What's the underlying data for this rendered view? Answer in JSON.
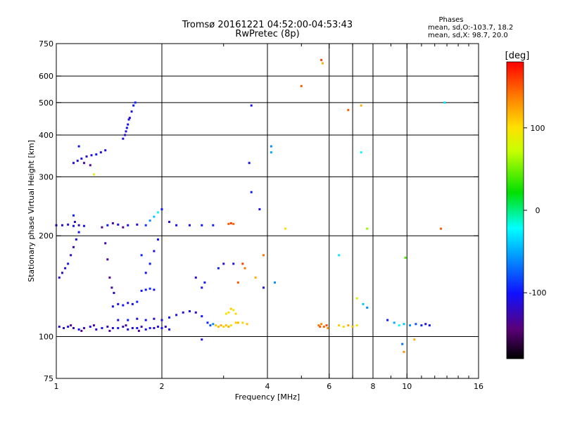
{
  "chart_data": {
    "type": "scatter",
    "title": "Tromsø 20161221 04:52:00-04:53:43",
    "subtitle": "RwPretec (8p)",
    "xlabel": "Frequency [MHz]",
    "ylabel": "Stationary phase Virtual Height [km]",
    "x_scale": "log",
    "y_scale": "log",
    "xlim": [
      1,
      16
    ],
    "ylim": [
      75,
      750
    ],
    "x_ticks": [
      1,
      2,
      4,
      6,
      8,
      10,
      16
    ],
    "x_minor_ticks": [
      3,
      5,
      7,
      9,
      11,
      12,
      13,
      14,
      15
    ],
    "y_ticks": [
      75,
      100,
      200,
      300,
      400,
      500,
      600,
      750
    ],
    "grid_x": [
      2,
      4,
      6,
      7,
      8,
      10
    ],
    "grid_y": [
      100,
      200,
      300,
      400,
      500,
      600
    ],
    "grid": true,
    "phases_box": {
      "title": "Phases",
      "line1": "mean, sd,O:-103.7, 18.2",
      "line2": "mean, sd,X:  98.7, 20.0"
    },
    "colorbar": {
      "label": "[deg]",
      "range": [
        -180,
        180
      ],
      "ticks": [
        {
          "value": 100,
          "label": "100"
        },
        {
          "value": 0,
          "label": "0"
        },
        {
          "value": -100,
          "label": "-100"
        }
      ]
    },
    "series": [
      {
        "points": [
          [
            1.02,
            107,
            -110
          ],
          [
            1.05,
            106,
            -115
          ],
          [
            1.08,
            107,
            -105
          ],
          [
            1.12,
            106,
            -120
          ],
          [
            1.16,
            105,
            -100
          ],
          [
            1.2,
            106,
            -125
          ],
          [
            1.25,
            107,
            -110
          ],
          [
            1.3,
            105,
            -118
          ],
          [
            1.35,
            106,
            -105
          ],
          [
            1.4,
            107,
            -122
          ],
          [
            1.45,
            106,
            -112
          ],
          [
            1.5,
            106,
            -100
          ],
          [
            1.55,
            107,
            -120
          ],
          [
            1.6,
            105,
            -108
          ],
          [
            1.65,
            106,
            -115
          ],
          [
            1.7,
            106,
            -102
          ],
          [
            1.75,
            107,
            -125
          ],
          [
            1.8,
            105,
            -110
          ],
          [
            1.85,
            106,
            -100
          ],
          [
            1.9,
            106,
            -118
          ],
          [
            1.95,
            107,
            -112
          ],
          [
            2.0,
            106,
            -104
          ],
          [
            2.05,
            107,
            -120
          ],
          [
            2.1,
            105,
            -108
          ],
          [
            1.1,
            108,
            -135
          ],
          [
            1.18,
            104,
            -140
          ],
          [
            1.28,
            108,
            -130
          ],
          [
            1.42,
            104,
            -138
          ],
          [
            1.58,
            108,
            -132
          ],
          [
            1.72,
            104,
            -140
          ]
        ]
      },
      {
        "points": [
          [
            1.5,
            112,
            -110
          ],
          [
            1.6,
            112,
            -100
          ],
          [
            1.7,
            113,
            -115
          ],
          [
            1.8,
            112,
            -105
          ],
          [
            1.9,
            113,
            -120
          ],
          [
            2.0,
            112,
            -110
          ],
          [
            2.1,
            114,
            -100
          ],
          [
            2.2,
            116,
            -108
          ],
          [
            2.3,
            118,
            -112
          ],
          [
            2.4,
            119,
            -104
          ],
          [
            2.5,
            118,
            -115
          ],
          [
            2.6,
            115,
            -100
          ],
          [
            2.7,
            110,
            -95
          ],
          [
            2.75,
            108,
            -80
          ],
          [
            2.8,
            109,
            -60
          ]
        ]
      },
      {
        "points": [
          [
            1.45,
            123,
            -105
          ],
          [
            1.5,
            125,
            -110
          ],
          [
            1.55,
            124,
            -100
          ],
          [
            1.6,
            126,
            -112
          ],
          [
            1.65,
            125,
            -104
          ],
          [
            1.7,
            127,
            -95
          ],
          [
            1.8,
            138,
            -100
          ],
          [
            1.85,
            139,
            -90
          ],
          [
            1.9,
            138,
            -105
          ],
          [
            1.75,
            137,
            -98
          ]
        ]
      },
      {
        "points": [
          [
            2.85,
            108,
            110
          ],
          [
            2.9,
            107,
            115
          ],
          [
            2.95,
            108,
            120
          ],
          [
            3.0,
            107,
            105
          ],
          [
            3.05,
            108,
            112
          ],
          [
            3.1,
            107,
            118
          ],
          [
            3.15,
            108,
            100
          ],
          [
            3.25,
            110,
            108
          ],
          [
            3.3,
            110,
            115
          ],
          [
            3.4,
            110,
            105
          ],
          [
            3.5,
            109,
            112
          ],
          [
            3.05,
            117,
            95
          ],
          [
            3.1,
            118,
            100
          ],
          [
            3.15,
            121,
            110
          ],
          [
            3.2,
            120,
            90
          ],
          [
            3.25,
            117,
            105
          ]
        ]
      },
      {
        "points": [
          [
            5.6,
            108,
            140
          ],
          [
            5.65,
            107,
            150
          ],
          [
            5.7,
            109,
            135
          ],
          [
            5.8,
            107,
            145
          ],
          [
            5.9,
            108,
            155
          ],
          [
            5.95,
            106,
            130
          ],
          [
            6.4,
            108,
            110
          ],
          [
            6.6,
            107,
            105
          ],
          [
            6.8,
            108,
            120
          ],
          [
            7.0,
            107,
            115
          ],
          [
            7.2,
            108,
            100
          ],
          [
            9.5,
            108,
            -20
          ],
          [
            9.8,
            109,
            -40
          ],
          [
            10.2,
            108,
            -60
          ],
          [
            10.6,
            109,
            -80
          ],
          [
            11.0,
            108,
            -95
          ],
          [
            11.3,
            109,
            -110
          ],
          [
            11.6,
            108,
            -100
          ],
          [
            8.8,
            112,
            -100
          ],
          [
            9.2,
            110,
            -50
          ],
          [
            7.5,
            125,
            -40
          ],
          [
            7.7,
            122,
            -60
          ]
        ]
      },
      {
        "points": [
          [
            1.02,
            150,
            -115
          ],
          [
            1.04,
            155,
            -120
          ],
          [
            1.06,
            160,
            -110
          ],
          [
            1.08,
            165,
            -105
          ],
          [
            1.1,
            175,
            -115
          ],
          [
            1.12,
            185,
            -125
          ],
          [
            1.14,
            195,
            -110
          ],
          [
            1.16,
            205,
            -105
          ],
          [
            1.13,
            220,
            -115
          ],
          [
            1.12,
            230,
            -95
          ],
          [
            1.38,
            190,
            -130
          ],
          [
            1.4,
            170,
            -135
          ],
          [
            1.42,
            150,
            -140
          ],
          [
            1.44,
            140,
            -130
          ],
          [
            1.46,
            135,
            -120
          ],
          [
            1.8,
            155,
            -105
          ],
          [
            1.85,
            165,
            -100
          ],
          [
            1.9,
            180,
            -110
          ],
          [
            1.95,
            195,
            -100
          ],
          [
            1.75,
            175,
            -95
          ],
          [
            2.5,
            150,
            -120
          ],
          [
            2.6,
            140,
            -110
          ],
          [
            2.65,
            145,
            -100
          ],
          [
            2.9,
            160,
            -95
          ],
          [
            3.0,
            165,
            -115
          ],
          [
            3.2,
            165,
            -105
          ],
          [
            3.4,
            165,
            160
          ],
          [
            3.45,
            160,
            140
          ],
          [
            3.3,
            145,
            150
          ]
        ]
      },
      {
        "points": [
          [
            1.0,
            215,
            -105
          ],
          [
            1.04,
            215,
            -110
          ],
          [
            1.08,
            216,
            -115
          ],
          [
            1.12,
            214,
            -100
          ],
          [
            1.16,
            215,
            -120
          ],
          [
            1.2,
            214,
            -110
          ],
          [
            1.4,
            215,
            -100
          ],
          [
            1.5,
            216,
            -110
          ],
          [
            1.6,
            215,
            -105
          ],
          [
            1.7,
            216,
            -115
          ],
          [
            1.8,
            215,
            -90
          ],
          [
            1.85,
            222,
            -60
          ],
          [
            1.9,
            228,
            -40
          ],
          [
            1.95,
            235,
            -20
          ],
          [
            2.0,
            240,
            -100
          ],
          [
            2.1,
            220,
            -110
          ],
          [
            2.2,
            215,
            -105
          ],
          [
            2.4,
            215,
            -110
          ],
          [
            2.6,
            215,
            -100
          ],
          [
            2.8,
            215,
            -95
          ],
          [
            3.1,
            217,
            150
          ],
          [
            3.15,
            218,
            160
          ],
          [
            3.2,
            217,
            145
          ],
          [
            1.35,
            212,
            -135
          ],
          [
            1.45,
            218,
            -130
          ],
          [
            1.55,
            212,
            -140
          ]
        ]
      },
      {
        "points": [
          [
            1.12,
            330,
            -110
          ],
          [
            1.15,
            335,
            -115
          ],
          [
            1.18,
            340,
            -105
          ],
          [
            1.22,
            345,
            -120
          ],
          [
            1.26,
            348,
            -110
          ],
          [
            1.3,
            350,
            -100
          ],
          [
            1.34,
            355,
            -112
          ],
          [
            1.38,
            360,
            -108
          ],
          [
            1.2,
            330,
            -130
          ],
          [
            1.25,
            325,
            -135
          ],
          [
            1.16,
            370,
            -100
          ],
          [
            1.28,
            305,
            90
          ],
          [
            1.55,
            390,
            -110
          ],
          [
            1.58,
            410,
            -115
          ],
          [
            1.6,
            430,
            -105
          ],
          [
            1.62,
            450,
            -112
          ],
          [
            1.64,
            470,
            -108
          ],
          [
            1.66,
            490,
            -100
          ],
          [
            1.68,
            500,
            -95
          ],
          [
            1.57,
            400,
            -120
          ],
          [
            1.59,
            420,
            -100
          ],
          [
            1.61,
            445,
            -110
          ]
        ]
      },
      {
        "points": [
          [
            3.6,
            490,
            -105
          ],
          [
            3.55,
            330,
            -105
          ],
          [
            3.6,
            270,
            -100
          ],
          [
            3.8,
            240,
            -110
          ],
          [
            4.1,
            370,
            -60
          ],
          [
            4.1,
            355,
            -50
          ],
          [
            4.5,
            210,
            100
          ],
          [
            5.0,
            560,
            150
          ],
          [
            5.7,
            670,
            160
          ],
          [
            5.75,
            655,
            120
          ],
          [
            6.8,
            475,
            150
          ],
          [
            7.4,
            490,
            120
          ],
          [
            7.4,
            355,
            -20
          ],
          [
            7.7,
            210,
            60
          ],
          [
            12.5,
            210,
            150
          ],
          [
            12.8,
            500,
            -30
          ],
          [
            6.4,
            175,
            -30
          ],
          [
            7.2,
            130,
            80
          ],
          [
            3.9,
            140,
            -110
          ],
          [
            4.2,
            145,
            -60
          ],
          [
            9.7,
            95,
            -70
          ],
          [
            10.5,
            98,
            120
          ],
          [
            9.8,
            90,
            130
          ],
          [
            9.9,
            172,
            40
          ],
          [
            2.6,
            98,
            -110
          ],
          [
            3.9,
            175,
            140
          ],
          [
            3.7,
            150,
            120
          ]
        ]
      }
    ]
  }
}
